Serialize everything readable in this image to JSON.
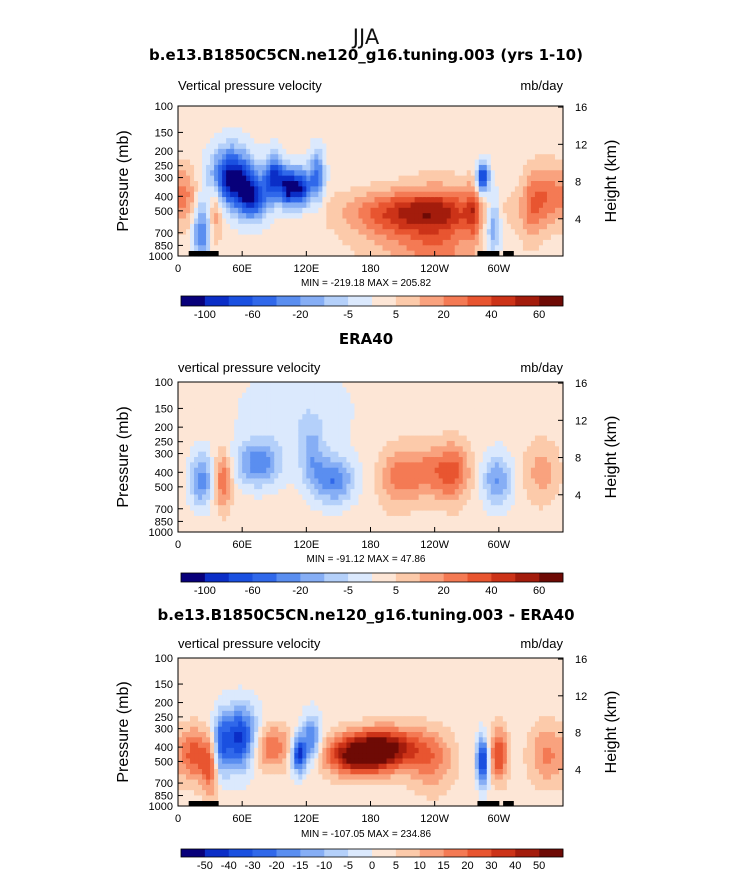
{
  "figure_title": "JJA",
  "chart_data": [
    {
      "type": "heatmap",
      "title": "b.e13.B1850C5CN.ne120_g16.tuning.003 (yrs 1-10)",
      "left_label": "Vertical pressure velocity",
      "right_label": "mb/day",
      "ylabel": "Pressure (mb)",
      "ylabel_right": "Height (km)",
      "xticks": [
        "0",
        "60E",
        "120E",
        "180",
        "120W",
        "60W"
      ],
      "yticks": [
        "100",
        "150",
        "200",
        "250",
        "300",
        "400",
        "500",
        "700",
        "850",
        "1000"
      ],
      "yticks_right": [
        "16",
        "12",
        "8",
        "4"
      ],
      "stats": "MIN = -219.18   MAX = 205.82",
      "colorbar_labels": [
        "-100",
        "-60",
        "-20",
        "-5",
        "5",
        "20",
        "40",
        "60"
      ],
      "colorbar_colors": [
        "#08007a",
        "#0b2ec7",
        "#1a50e0",
        "#3068ea",
        "#5a8ef0",
        "#86aef5",
        "#b4d0fa",
        "#dbe9fd",
        "#fde6d6",
        "#fccaaa",
        "#f9a27e",
        "#f47a54",
        "#e85530",
        "#cc3318",
        "#a31c0c",
        "#6e0a05"
      ],
      "value_range": [
        -100,
        100
      ],
      "terrain_ranges_lon": [
        [
          10,
          38
        ],
        [
          280,
          300
        ],
        [
          304,
          314
        ]
      ],
      "features": [
        {
          "lon": 50,
          "width": 13,
          "ctr": 300,
          "sz": 3.2,
          "amp": -1.0
        },
        {
          "lon": 70,
          "width": 10,
          "ctr": 400,
          "sz": 4.0,
          "amp": -0.8
        },
        {
          "lon": 90,
          "width": 6,
          "ctr": 300,
          "sz": 4.0,
          "amp": -0.85
        },
        {
          "lon": 103,
          "width": 5,
          "ctr": 350,
          "sz": 5.0,
          "amp": -0.9
        },
        {
          "lon": 115,
          "width": 6,
          "ctr": 350,
          "sz": 5.0,
          "amp": -0.9
        },
        {
          "lon": 130,
          "width": 5,
          "ctr": 300,
          "sz": 3.5,
          "amp": -0.6
        },
        {
          "lon": 22,
          "width": 6,
          "ctr": 700,
          "sz": 3.0,
          "amp": -0.55
        },
        {
          "lon": 35,
          "width": 5,
          "ctr": 500,
          "sz": 3.0,
          "amp": 0.35
        },
        {
          "lon": 8,
          "width": 8,
          "ctr": 400,
          "sz": 3.0,
          "amp": 0.3
        },
        {
          "lon": 225,
          "width": 45,
          "ctr": 500,
          "sz": 4.5,
          "amp": 0.55
        },
        {
          "lon": 245,
          "width": 25,
          "ctr": 850,
          "sz": 1.6,
          "amp": 0.35
        },
        {
          "lon": 200,
          "width": 30,
          "ctr": 700,
          "sz": 3.0,
          "amp": 0.2
        },
        {
          "lon": 285,
          "width": 4,
          "ctr": 300,
          "sz": 6.0,
          "amp": -0.9
        },
        {
          "lon": 295,
          "width": 5,
          "ctr": 600,
          "sz": 3.0,
          "amp": -0.5
        },
        {
          "lon": 275,
          "width": 4,
          "ctr": 500,
          "sz": 3.0,
          "amp": 0.3
        },
        {
          "lon": 345,
          "width": 12,
          "ctr": 400,
          "sz": 3.0,
          "amp": 0.4
        },
        {
          "lon": 330,
          "width": 8,
          "ctr": 500,
          "sz": 2.5,
          "amp": 0.25
        }
      ]
    },
    {
      "type": "heatmap",
      "title": "ERA40",
      "left_label": "vertical pressure velocity",
      "right_label": "mb/day",
      "ylabel": "Pressure (mb)",
      "ylabel_right": "Height (km)",
      "xticks": [
        "0",
        "60E",
        "120E",
        "180",
        "120W",
        "60W"
      ],
      "yticks": [
        "100",
        "150",
        "200",
        "250",
        "300",
        "400",
        "500",
        "700",
        "850",
        "1000"
      ],
      "yticks_right": [
        "16",
        "12",
        "8",
        "4"
      ],
      "stats": "MIN = -91.12   MAX =  47.86",
      "colorbar_labels": [
        "-100",
        "-60",
        "-20",
        "-5",
        "5",
        "20",
        "40",
        "60"
      ],
      "colorbar_colors": [
        "#08007a",
        "#0b2ec7",
        "#1a50e0",
        "#3068ea",
        "#5a8ef0",
        "#86aef5",
        "#b4d0fa",
        "#dbe9fd",
        "#fde6d6",
        "#fccaaa",
        "#f9a27e",
        "#f47a54",
        "#e85530",
        "#cc3318",
        "#a31c0c",
        "#6e0a05"
      ],
      "value_range": [
        -100,
        100
      ],
      "terrain_ranges_lon": [],
      "features": [
        {
          "lon": 22,
          "width": 8,
          "ctr": 450,
          "sz": 3.5,
          "amp": -0.5
        },
        {
          "lon": 42,
          "width": 6,
          "ctr": 450,
          "sz": 3.2,
          "amp": 0.45
        },
        {
          "lon": 75,
          "width": 15,
          "ctr": 350,
          "sz": 4.0,
          "amp": -0.5
        },
        {
          "lon": 145,
          "width": 14,
          "ctr": 450,
          "sz": 4.0,
          "amp": -0.55
        },
        {
          "lon": 125,
          "width": 8,
          "ctr": 300,
          "sz": 3.0,
          "amp": -0.3
        },
        {
          "lon": 205,
          "width": 12,
          "ctr": 450,
          "sz": 3.0,
          "amp": 0.25
        },
        {
          "lon": 235,
          "width": 22,
          "ctr": 400,
          "sz": 3.5,
          "amp": 0.38
        },
        {
          "lon": 258,
          "width": 10,
          "ctr": 400,
          "sz": 3.0,
          "amp": 0.3
        },
        {
          "lon": 298,
          "width": 10,
          "ctr": 450,
          "sz": 3.5,
          "amp": -0.45
        },
        {
          "lon": 340,
          "width": 12,
          "ctr": 400,
          "sz": 3.0,
          "amp": 0.25
        },
        {
          "lon": 110,
          "width": 40,
          "ctr": 160,
          "sz": 2.0,
          "amp": -0.15
        }
      ]
    },
    {
      "type": "heatmap",
      "title": "b.e13.B1850C5CN.ne120_g16.tuning.003 - ERA40",
      "left_label": "vertical pressure velocity",
      "right_label": "mb/day",
      "ylabel": "Pressure (mb)",
      "ylabel_right": "Height (km)",
      "xticks": [
        "0",
        "60E",
        "120E",
        "180",
        "120W",
        "60W"
      ],
      "yticks": [
        "100",
        "150",
        "200",
        "250",
        "300",
        "400",
        "500",
        "700",
        "850",
        "1000"
      ],
      "yticks_right": [
        "16",
        "12",
        "8",
        "4"
      ],
      "stats": "MIN = -107.05   MAX = 234.86",
      "colorbar_labels": [
        "-50",
        "-40",
        "-30",
        "-20",
        "-15",
        "-10",
        "-5",
        "0",
        "5",
        "10",
        "15",
        "20",
        "30",
        "40",
        "50"
      ],
      "colorbar_colors": [
        "#08007a",
        "#0b2ec7",
        "#1a50e0",
        "#3068ea",
        "#5a8ef0",
        "#86aef5",
        "#b4d0fa",
        "#dbe9fd",
        "#fde6d6",
        "#fccaaa",
        "#f9a27e",
        "#f47a54",
        "#e85530",
        "#cc3318",
        "#a31c0c",
        "#6e0a05"
      ],
      "value_range": [
        -50,
        50
      ],
      "terrain_ranges_lon": [
        [
          10,
          38
        ],
        [
          280,
          300
        ],
        [
          304,
          314
        ]
      ],
      "features": [
        {
          "lon": 15,
          "width": 9,
          "ctr": 450,
          "sz": 3.5,
          "amp": 0.5
        },
        {
          "lon": 30,
          "width": 6,
          "ctr": 550,
          "sz": 3.0,
          "amp": 0.45
        },
        {
          "lon": 40,
          "width": 5,
          "ctr": 400,
          "sz": 3.0,
          "amp": -0.5
        },
        {
          "lon": 58,
          "width": 12,
          "ctr": 350,
          "sz": 3.0,
          "amp": -0.9
        },
        {
          "lon": 85,
          "width": 15,
          "ctr": 400,
          "sz": 4.0,
          "amp": 0.45
        },
        {
          "lon": 113,
          "width": 5,
          "ctr": 450,
          "sz": 5.0,
          "amp": -0.9
        },
        {
          "lon": 125,
          "width": 6,
          "ctr": 350,
          "sz": 4.0,
          "amp": -0.6
        },
        {
          "lon": 170,
          "width": 22,
          "ctr": 450,
          "sz": 4.5,
          "amp": 0.95
        },
        {
          "lon": 200,
          "width": 22,
          "ctr": 400,
          "sz": 4.5,
          "amp": 0.6
        },
        {
          "lon": 237,
          "width": 15,
          "ctr": 500,
          "sz": 3.0,
          "amp": 0.35
        },
        {
          "lon": 285,
          "width": 4,
          "ctr": 500,
          "sz": 4.0,
          "amp": -0.9
        },
        {
          "lon": 300,
          "width": 6,
          "ctr": 450,
          "sz": 3.5,
          "amp": 0.6
        },
        {
          "lon": 345,
          "width": 12,
          "ctr": 450,
          "sz": 3.0,
          "amp": 0.35
        }
      ]
    }
  ]
}
